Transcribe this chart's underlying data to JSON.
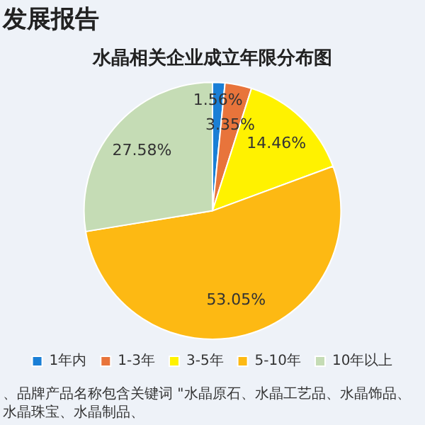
{
  "chart_data": {
    "type": "pie",
    "title": "水晶相关企业成立年限分布图",
    "subtitle": "发展报告",
    "categories": [
      "1年内",
      "1-3年",
      "3-5年",
      "5-10年",
      "10年以上"
    ],
    "values": [
      1.56,
      3.35,
      14.46,
      53.05,
      27.58
    ],
    "colors": [
      "#1a7fd6",
      "#e8743b",
      "#fff200",
      "#fdb913",
      "#c5dcb5"
    ],
    "value_labels": [
      "1.56%",
      "3.35%",
      "14.46%",
      "53.05%",
      "27.58%"
    ],
    "legend": "bottom",
    "annotations": [
      "、品牌产品名称包含关键词 \"水晶原石、水晶工艺品、水晶饰品、水晶珠宝、水晶制品、"
    ]
  }
}
